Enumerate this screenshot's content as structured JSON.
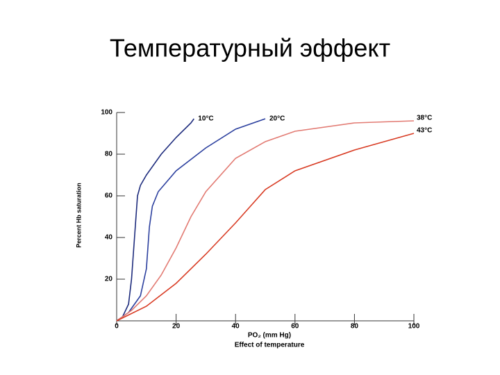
{
  "chart_data": {
    "type": "line",
    "title": "Температурный эффект",
    "xlabel": "PO₂ (mm Hg)",
    "caption": "Effect of temperature",
    "ylabel": "Percent Hb saturation",
    "xlim": [
      0,
      100
    ],
    "xticks": [
      0,
      20,
      40,
      60,
      80,
      100
    ],
    "ylim": [
      0,
      100
    ],
    "yticks": [
      20,
      40,
      60,
      80,
      100
    ],
    "series": [
      {
        "name": "10°C",
        "color": "#1c2a7c",
        "x": [
          0,
          2,
          4,
          5,
          6,
          7,
          8,
          10,
          15,
          20,
          25,
          26
        ],
        "values": [
          0,
          2,
          8,
          20,
          40,
          60,
          65,
          70,
          80,
          88,
          95,
          97
        ]
      },
      {
        "name": "20°C",
        "color": "#2b3f9e",
        "x": [
          0,
          4,
          8,
          10,
          11,
          12,
          14,
          20,
          30,
          40,
          50
        ],
        "values": [
          0,
          4,
          12,
          25,
          45,
          55,
          62,
          72,
          83,
          92,
          97
        ]
      },
      {
        "name": "38°C",
        "color": "#e27a72",
        "x": [
          0,
          5,
          10,
          15,
          20,
          25,
          30,
          40,
          50,
          60,
          80,
          100
        ],
        "values": [
          0,
          5,
          12,
          22,
          35,
          50,
          62,
          78,
          86,
          91,
          95,
          96
        ]
      },
      {
        "name": "43°C",
        "color": "#d83a22",
        "x": [
          0,
          10,
          20,
          30,
          40,
          45,
          50,
          60,
          80,
          100
        ],
        "values": [
          0,
          7,
          18,
          32,
          47,
          55,
          63,
          72,
          82,
          90
        ]
      }
    ]
  }
}
